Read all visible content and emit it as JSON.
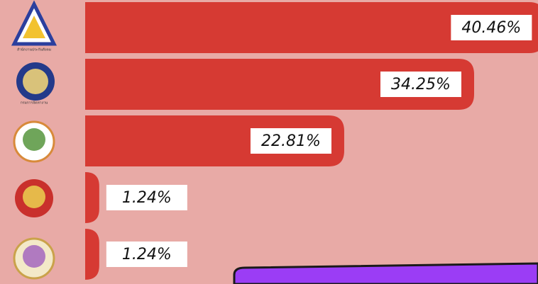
{
  "chart_data": {
    "type": "bar",
    "orientation": "horizontal",
    "categories": [
      "สำนักงานประกันสังคม",
      "กรมการจัดหางาน",
      null,
      null,
      null
    ],
    "values": [
      40.46,
      34.25,
      22.81,
      1.24,
      1.24
    ],
    "value_labels": [
      "40.46%",
      "34.25%",
      "22.81%",
      "1.24%",
      "1.24%"
    ],
    "color": "#d63a33"
  }
}
